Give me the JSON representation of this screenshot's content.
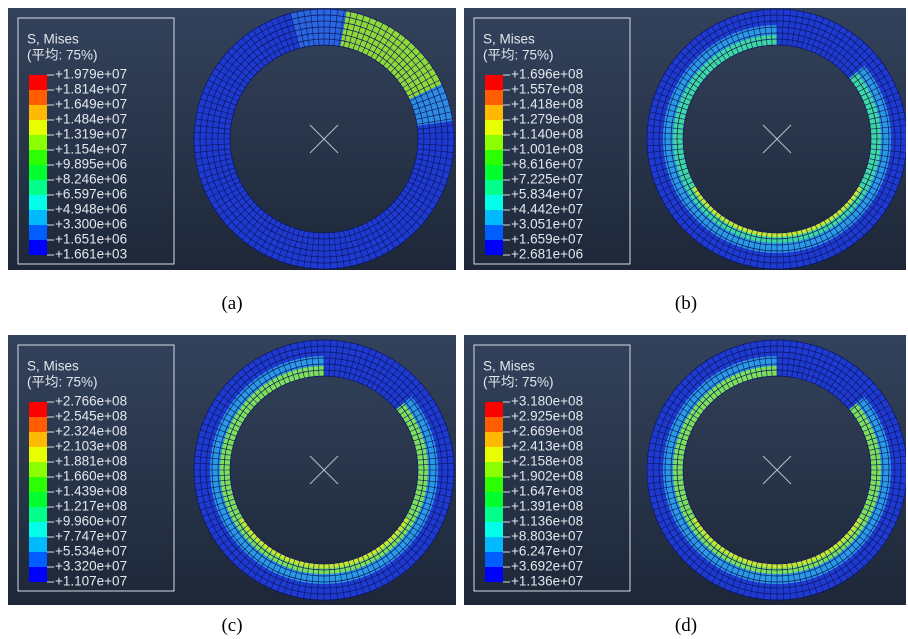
{
  "panels": [
    {
      "legend_title": "S, Mises",
      "legend_subtitle": "(平均: 75%)",
      "caption": "(a)",
      "labels": [
        "+1.979e+07",
        "+1.814e+07",
        "+1.649e+07",
        "+1.484e+07",
        "+1.319e+07",
        "+1.154e+07",
        "+9.895e+06",
        "+8.246e+06",
        "+6.597e+06",
        "+4.948e+06",
        "+3.300e+06",
        "+1.651e+06",
        "+1.661e+03"
      ]
    },
    {
      "legend_title": "S, Mises",
      "legend_subtitle": "(平均: 75%)",
      "caption": "(b)",
      "labels": [
        "+1.696e+08",
        "+1.557e+08",
        "+1.418e+08",
        "+1.279e+08",
        "+1.140e+08",
        "+1.001e+08",
        "+8.616e+07",
        "+7.225e+07",
        "+5.834e+07",
        "+4.442e+07",
        "+3.051e+07",
        "+1.659e+07",
        "+2.681e+06"
      ]
    },
    {
      "legend_title": "S, Mises",
      "legend_subtitle": "(平均: 75%)",
      "caption": "(c)",
      "labels": [
        "+2.766e+08",
        "+2.545e+08",
        "+2.324e+08",
        "+2.103e+08",
        "+1.881e+08",
        "+1.660e+08",
        "+1.439e+08",
        "+1.217e+08",
        "+9.960e+07",
        "+7.747e+07",
        "+5.534e+07",
        "+3.320e+07",
        "+1.107e+07"
      ]
    },
    {
      "legend_title": "S, Mises",
      "legend_subtitle": "(平均: 75%)",
      "caption": "(d)",
      "labels": [
        "+3.180e+08",
        "+2.925e+08",
        "+2.669e+08",
        "+2.413e+08",
        "+2.158e+08",
        "+1.902e+08",
        "+1.647e+08",
        "+1.391e+08",
        "+1.136e+08",
        "+8.803e+07",
        "+6.247e+07",
        "+3.692e+07",
        "+1.136e+07"
      ]
    }
  ]
}
